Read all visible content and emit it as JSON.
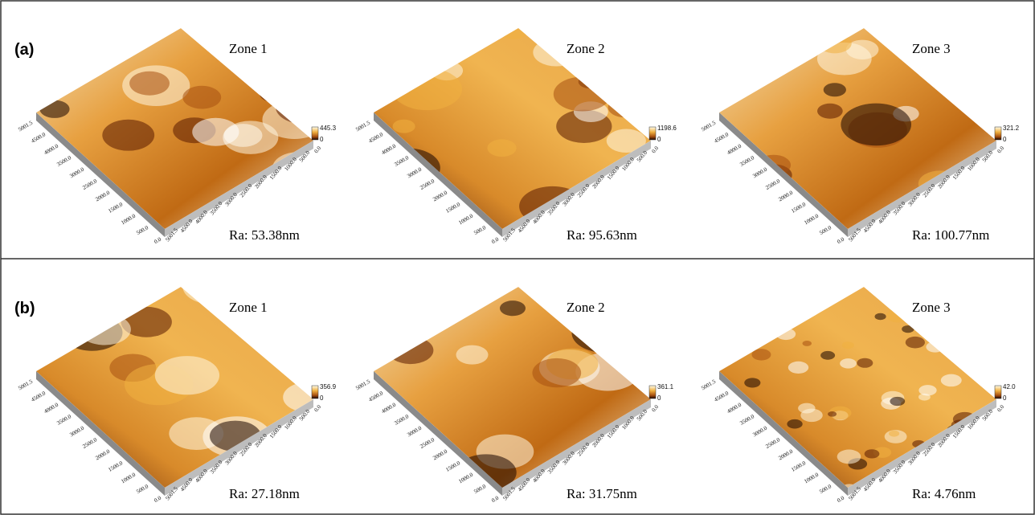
{
  "figure": {
    "rows": [
      {
        "label": "(a)",
        "panels": [
          {
            "zone": "Zone 1",
            "ra": "Ra: 53.38nm",
            "scale_max": "445.3"
          },
          {
            "zone": "Zone 2",
            "ra": "Ra: 95.63nm",
            "scale_max": "1198.6"
          },
          {
            "zone": "Zone 3",
            "ra": "Ra: 100.77nm",
            "scale_max": "321.2"
          }
        ]
      },
      {
        "label": "(b)",
        "panels": [
          {
            "zone": "Zone 1",
            "ra": "Ra: 27.18nm",
            "scale_max": "356.9"
          },
          {
            "zone": "Zone 2",
            "ra": "Ra: 31.75nm",
            "scale_max": "361.1"
          },
          {
            "zone": "Zone 3",
            "ra": "Ra: 4.76nm",
            "scale_max": "42.0"
          }
        ]
      }
    ],
    "scale_min": "0",
    "axis_ticks": [
      "5001.5",
      "4500.0",
      "4000.0",
      "3500.0",
      "3000.0",
      "2500.0",
      "2000.0",
      "1500.0",
      "1000.0",
      "500.0",
      "0.0"
    ]
  }
}
